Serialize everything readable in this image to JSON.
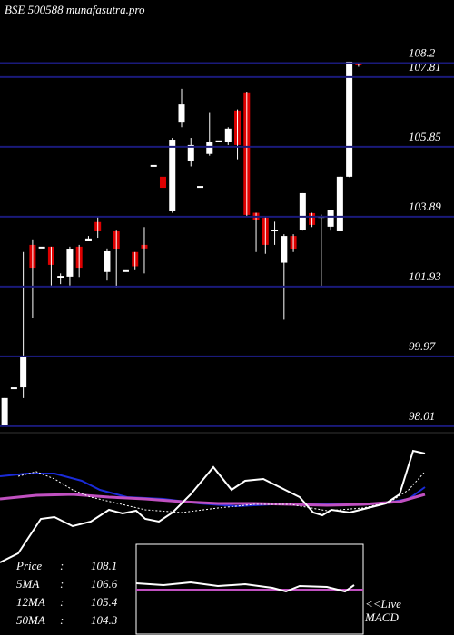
{
  "chart_data": {
    "type": "candlestick",
    "title": "BSE 500588 munafasutra.pro",
    "up_color": "#ffffff",
    "down_color": "#dd0000",
    "grid_color": "#1a1a7a",
    "ylim": [
      97.88,
      109.97
    ],
    "yticks": [
      108.2,
      107.81,
      105.85,
      103.89,
      101.93,
      99.97,
      98.01
    ],
    "open": [
      98.01,
      99.1,
      99.1,
      103.1,
      103.05,
      103.05,
      102.23,
      102.21,
      103.05,
      103.2,
      103.74,
      102.34,
      103.48,
      102.39,
      102.9,
      103.1,
      105.34,
      105.01,
      104.04,
      106.53,
      105.44,
      104.75,
      105.65,
      106.03,
      105.98,
      106.87,
      107.38,
      104.0,
      103.86,
      103.53,
      102.6,
      103.35,
      103.53,
      103.99,
      103.86,
      103.61,
      103.48,
      105.01,
      108.2
    ],
    "high": [
      98.8,
      99.1,
      102.9,
      103.23,
      103.05,
      103.05,
      102.3,
      103.05,
      103.1,
      103.35,
      103.9,
      103.0,
      103.5,
      102.39,
      102.9,
      103.6,
      105.34,
      105.1,
      106.1,
      107.48,
      106.1,
      104.75,
      106.8,
      106.03,
      106.4,
      106.9,
      107.4,
      104.0,
      103.9,
      103.75,
      103.4,
      103.4,
      104.55,
      104.0,
      103.95,
      104.07,
      105.01,
      108.24,
      108.2
    ],
    "low": [
      98.01,
      99.1,
      98.8,
      101.04,
      103.05,
      101.96,
      102.0,
      101.96,
      102.2,
      103.2,
      103.3,
      102.1,
      101.9,
      102.39,
      102.39,
      102.3,
      105.34,
      104.6,
      104.0,
      106.4,
      105.3,
      104.75,
      105.6,
      106.03,
      105.9,
      105.5,
      103.9,
      102.9,
      102.85,
      103.1,
      101.0,
      102.9,
      103.5,
      103.6,
      101.93,
      103.5,
      103.48,
      105.0,
      108.1
    ],
    "close": [
      98.8,
      99.1,
      99.97,
      102.46,
      103.05,
      102.54,
      102.23,
      102.97,
      102.46,
      103.28,
      103.48,
      102.92,
      102.97,
      102.39,
      102.5,
      103.0,
      105.34,
      104.7,
      106.05,
      107.04,
      105.9,
      104.75,
      105.98,
      106.03,
      106.36,
      105.9,
      103.94,
      103.8,
      103.1,
      103.53,
      103.35,
      102.97,
      104.55,
      103.66,
      103.91,
      104.07,
      105.01,
      108.24,
      108.14
    ],
    "legend": [
      {
        "label": "Price",
        "value": 108.1
      },
      {
        "label": "5MA",
        "value": 106.6
      },
      {
        "label": "12MA",
        "value": 105.4
      },
      {
        "label": "50MA",
        "value": 104.3
      }
    ],
    "live_label": "<<Live",
    "macd_label": "MACD"
  }
}
